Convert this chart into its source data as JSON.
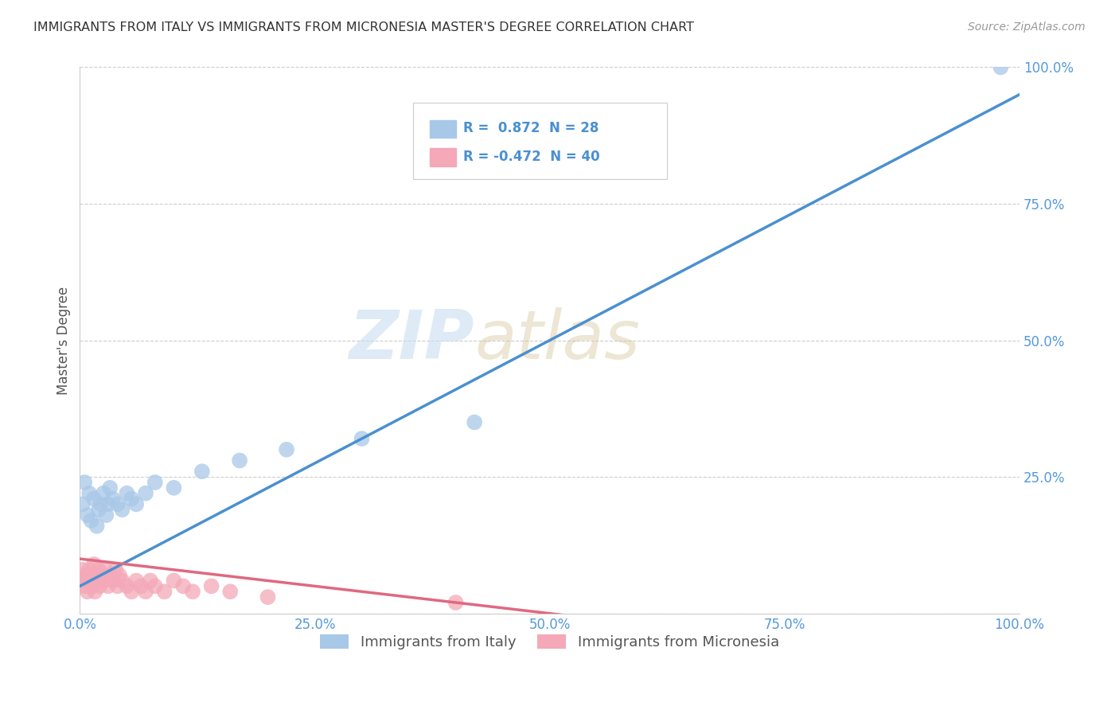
{
  "title": "IMMIGRANTS FROM ITALY VS IMMIGRANTS FROM MICRONESIA MASTER'S DEGREE CORRELATION CHART",
  "source": "Source: ZipAtlas.com",
  "ylabel": "Master's Degree",
  "legend1_label": "R =  0.872  N = 28",
  "legend2_label": "R = -0.472  N = 40",
  "legend_bottom_label1": "Immigrants from Italy",
  "legend_bottom_label2": "Immigrants from Micronesia",
  "blue_color": "#a8c8e8",
  "pink_color": "#f4a8b8",
  "blue_line_color": "#4a90d0",
  "pink_line_color": "#e06880",
  "watermark_color": "#c8dff0",
  "blue_scatter_x": [
    0.3,
    0.5,
    0.8,
    1.0,
    1.2,
    1.5,
    1.8,
    2.0,
    2.2,
    2.5,
    2.8,
    3.0,
    3.2,
    3.5,
    4.0,
    4.5,
    5.0,
    5.5,
    6.0,
    7.0,
    8.0,
    10.0,
    13.0,
    17.0,
    22.0,
    30.0,
    42.0,
    98.0
  ],
  "blue_scatter_y": [
    20.0,
    24.0,
    18.0,
    22.0,
    17.0,
    21.0,
    16.0,
    19.0,
    20.0,
    22.0,
    18.0,
    20.0,
    23.0,
    21.0,
    20.0,
    19.0,
    22.0,
    21.0,
    20.0,
    22.0,
    24.0,
    23.0,
    26.0,
    28.0,
    30.0,
    32.0,
    35.0,
    100.0
  ],
  "pink_scatter_x": [
    0.2,
    0.3,
    0.5,
    0.6,
    0.8,
    1.0,
    1.0,
    1.2,
    1.3,
    1.5,
    1.6,
    1.8,
    1.9,
    2.0,
    2.1,
    2.3,
    2.5,
    2.7,
    3.0,
    3.2,
    3.5,
    3.8,
    4.0,
    4.2,
    4.5,
    5.0,
    5.5,
    6.0,
    6.5,
    7.0,
    7.5,
    8.0,
    9.0,
    10.0,
    11.0,
    12.0,
    14.0,
    16.0,
    20.0,
    40.0
  ],
  "pink_scatter_y": [
    6.0,
    8.0,
    5.0,
    7.0,
    4.0,
    8.0,
    6.0,
    7.0,
    5.0,
    9.0,
    4.0,
    7.0,
    6.0,
    8.0,
    5.0,
    7.0,
    6.0,
    8.0,
    5.0,
    7.0,
    6.0,
    8.0,
    5.0,
    7.0,
    6.0,
    5.0,
    4.0,
    6.0,
    5.0,
    4.0,
    6.0,
    5.0,
    4.0,
    6.0,
    5.0,
    4.0,
    5.0,
    4.0,
    3.0,
    2.0
  ],
  "blue_line_x": [
    0,
    100
  ],
  "blue_line_y": [
    5,
    95
  ],
  "pink_line_x": [
    0,
    60
  ],
  "pink_line_y": [
    10,
    -2
  ],
  "xlim": [
    0,
    100
  ],
  "ylim": [
    0,
    100
  ],
  "x_ticks": [
    0,
    25,
    50,
    75,
    100
  ],
  "y_ticks": [
    0,
    25,
    50,
    75,
    100
  ],
  "x_tick_labels": [
    "0.0%",
    "25.0%",
    "50.0%",
    "75.0%",
    "100.0%"
  ],
  "y_tick_labels": [
    "",
    "25.0%",
    "50.0%",
    "75.0%",
    "100.0%"
  ],
  "background_color": "#ffffff",
  "grid_color": "#cccccc",
  "tick_color": "#5599dd",
  "ylabel_color": "#555555",
  "title_color": "#333333",
  "source_color": "#999999"
}
